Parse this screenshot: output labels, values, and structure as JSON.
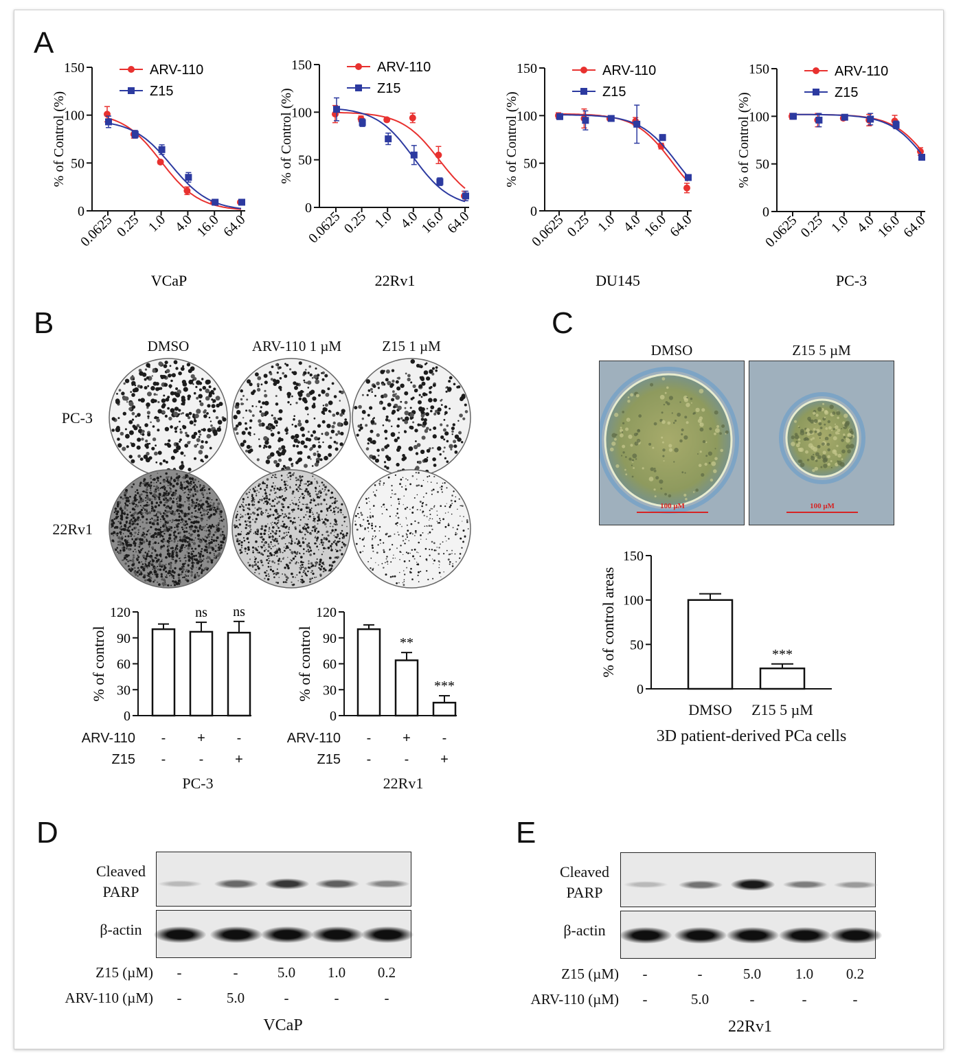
{
  "colors": {
    "arv110": "#e8312f",
    "z15": "#2c3aa0",
    "axis": "#111111"
  },
  "panel_letters": [
    "A",
    "B",
    "C",
    "D",
    "E"
  ],
  "panelA": {
    "x_ticks": [
      "0.0625",
      "0.25",
      "1.0",
      "4.0",
      "16.0",
      "64.0"
    ],
    "y_ticks": [
      "0",
      "50",
      "100",
      "150"
    ],
    "ylabel": "% of Control (%)",
    "legend": [
      "ARV-110",
      "Z15"
    ],
    "cell_lines": [
      "VCaP",
      "22Rv1",
      "DU145",
      "PC-3"
    ]
  },
  "panelB": {
    "treatments": [
      "DMSO",
      "ARV-110 1 µM",
      "Z15 1 µM"
    ],
    "rows": [
      "PC-3",
      "22Rv1"
    ],
    "ylabel": "% of control",
    "y_ticks": [
      "0",
      "30",
      "60",
      "90",
      "120"
    ],
    "factor_labels": [
      "ARV-110",
      "Z15"
    ],
    "arv_signs": [
      "-",
      "+",
      "-"
    ],
    "z15_signs": [
      "-",
      "-",
      "+"
    ],
    "cell_lines": [
      "PC-3",
      "22Rv1"
    ],
    "sig_pc3": [
      "",
      "ns",
      "ns"
    ],
    "sig_22rv1": [
      "",
      "**",
      "***"
    ]
  },
  "panelC": {
    "treatments": [
      "DMSO",
      "Z15 5 µM"
    ],
    "scale_bar": "100 μM",
    "ylabel": "% of control areas",
    "y_ticks": [
      "0",
      "50",
      "100",
      "150"
    ],
    "categories": [
      "DMSO",
      "Z15 5 µM"
    ],
    "xlabel": "3D patient-derived PCa cells",
    "sig": [
      "",
      "***"
    ]
  },
  "panelD": {
    "row_labels": [
      "Cleaved",
      "PARP",
      "β-actin"
    ],
    "z15_label": "Z15 (µM)",
    "z15_values": [
      "-",
      "-",
      "5.0",
      "1.0",
      "0.2"
    ],
    "arv_label": "ARV-110 (µM)",
    "arv_values": [
      "-",
      "5.0",
      "-",
      "-",
      "-"
    ],
    "cell_line": "VCaP",
    "parp_intensity": [
      0.15,
      0.55,
      0.8,
      0.6,
      0.4
    ]
  },
  "panelE": {
    "row_labels": [
      "Cleaved",
      "PARP",
      "β-actin"
    ],
    "z15_label": "Z15 (µM)",
    "z15_values": [
      "-",
      "-",
      "5.0",
      "1.0",
      "0.2"
    ],
    "arv_label": "ARV-110 (µM)",
    "arv_values": [
      "-",
      "5.0",
      "-",
      "-",
      "-"
    ],
    "cell_line": "22Rv1",
    "parp_intensity": [
      0.15,
      0.5,
      0.95,
      0.45,
      0.3
    ]
  },
  "chart_data": [
    {
      "type": "line",
      "title": "VCaP",
      "xlabel": "VCaP",
      "ylabel": "% of Control (%)",
      "x_scale": "log2",
      "x": [
        0.0625,
        0.25,
        1.0,
        4.0,
        16.0,
        64.0
      ],
      "ylim": [
        0,
        150
      ],
      "legend_placement": "top-left",
      "series": [
        {
          "name": "ARV-110",
          "x": [
            0.0625,
            0.25,
            1.0,
            4.0,
            16.0,
            64.0
          ],
          "values": [
            101,
            80,
            51,
            21,
            9,
            9
          ],
          "error": [
            8,
            4,
            2,
            4,
            1,
            1
          ],
          "fit_ic50": 1.0
        },
        {
          "name": "Z15",
          "x": [
            0.0625,
            0.25,
            1.0,
            4.0,
            16.0,
            64.0
          ],
          "values": [
            93,
            80,
            64,
            35,
            9,
            9
          ],
          "error": [
            6,
            4,
            5,
            5,
            1,
            1
          ],
          "fit_ic50": 1.7
        }
      ]
    },
    {
      "type": "line",
      "title": "22Rv1",
      "xlabel": "22Rv1",
      "ylabel": "% of Control (%)",
      "x_scale": "log2",
      "x": [
        0.0625,
        0.25,
        1.0,
        4.0,
        16.0,
        64.0
      ],
      "ylim": [
        0,
        150
      ],
      "legend_placement": "top-left",
      "series": [
        {
          "name": "ARV-110",
          "x": [
            0.0625,
            0.25,
            1.0,
            4.0,
            16.0,
            64.0
          ],
          "values": [
            98,
            93,
            92,
            94,
            55,
            12
          ],
          "error": [
            9,
            3,
            2,
            5,
            9,
            5
          ],
          "fit_ic50": 16.0
        },
        {
          "name": "Z15",
          "x": [
            0.0625,
            0.25,
            1.0,
            4.0,
            16.0,
            64.0
          ],
          "values": [
            103,
            89,
            72,
            55,
            27,
            12
          ],
          "error": [
            12,
            4,
            6,
            10,
            4,
            5
          ],
          "fit_ic50": 4.0
        }
      ]
    },
    {
      "type": "line",
      "title": "DU145",
      "xlabel": "DU145",
      "ylabel": "% of Control (%)",
      "x_scale": "log2",
      "x": [
        0.0625,
        0.25,
        1.0,
        4.0,
        16.0,
        64.0
      ],
      "ylim": [
        0,
        150
      ],
      "legend_placement": "top-left",
      "series": [
        {
          "name": "ARV-110",
          "x": [
            0.0625,
            0.25,
            1.0,
            4.0,
            16.0,
            64.0
          ],
          "values": [
            100,
            97,
            97,
            94,
            68,
            24
          ],
          "error": [
            3,
            10,
            2,
            4,
            3,
            5
          ],
          "fit_ic50": 28
        },
        {
          "name": "Z15",
          "x": [
            0.0625,
            0.25,
            1.0,
            4.0,
            16.0,
            64.0
          ],
          "values": [
            99,
            95,
            97,
            91,
            77,
            35
          ],
          "error": [
            3,
            10,
            2,
            20,
            3,
            3
          ],
          "fit_ic50": 36
        }
      ]
    },
    {
      "type": "line",
      "title": "PC-3",
      "xlabel": "PC-3",
      "ylabel": "% of Control (%)",
      "x_scale": "log2",
      "x": [
        0.0625,
        0.25,
        1.0,
        4.0,
        16.0,
        64.0
      ],
      "ylim": [
        0,
        150
      ],
      "legend_placement": "top-left",
      "series": [
        {
          "name": "ARV-110",
          "x": [
            0.0625,
            0.25,
            1.0,
            4.0,
            16.0,
            64.0
          ],
          "values": [
            100,
            96,
            98,
            96,
            95,
            63
          ],
          "error": [
            3,
            7,
            2,
            6,
            6,
            4
          ],
          "fit_ic50": 110
        },
        {
          "name": "Z15",
          "x": [
            0.0625,
            0.25,
            1.0,
            4.0,
            16.0,
            64.0
          ],
          "values": [
            100,
            96,
            99,
            97,
            91,
            57
          ],
          "error": [
            3,
            7,
            2,
            6,
            4,
            3
          ],
          "fit_ic50": 95
        }
      ]
    },
    {
      "type": "bar",
      "title": "PC-3",
      "xlabel": "PC-3",
      "ylabel": "% of control",
      "ylim": [
        0,
        120
      ],
      "categories": [
        "DMSO",
        "ARV-110",
        "Z15"
      ],
      "values": [
        100,
        97,
        96
      ],
      "error": [
        6,
        11,
        13
      ]
    },
    {
      "type": "bar",
      "title": "22Rv1",
      "xlabel": "22Rv1",
      "ylabel": "% of control",
      "ylim": [
        0,
        120
      ],
      "categories": [
        "DMSO",
        "ARV-110",
        "Z15"
      ],
      "values": [
        100,
        64,
        15
      ],
      "error": [
        5,
        9,
        8
      ]
    },
    {
      "type": "bar",
      "title": "3D patient-derived PCa cells",
      "xlabel": "3D patient-derived PCa cells",
      "ylabel": "% of control areas",
      "ylim": [
        0,
        150
      ],
      "categories": [
        "DMSO",
        "Z15 5 µM"
      ],
      "values": [
        100,
        23
      ],
      "error": [
        7,
        5
      ]
    }
  ]
}
